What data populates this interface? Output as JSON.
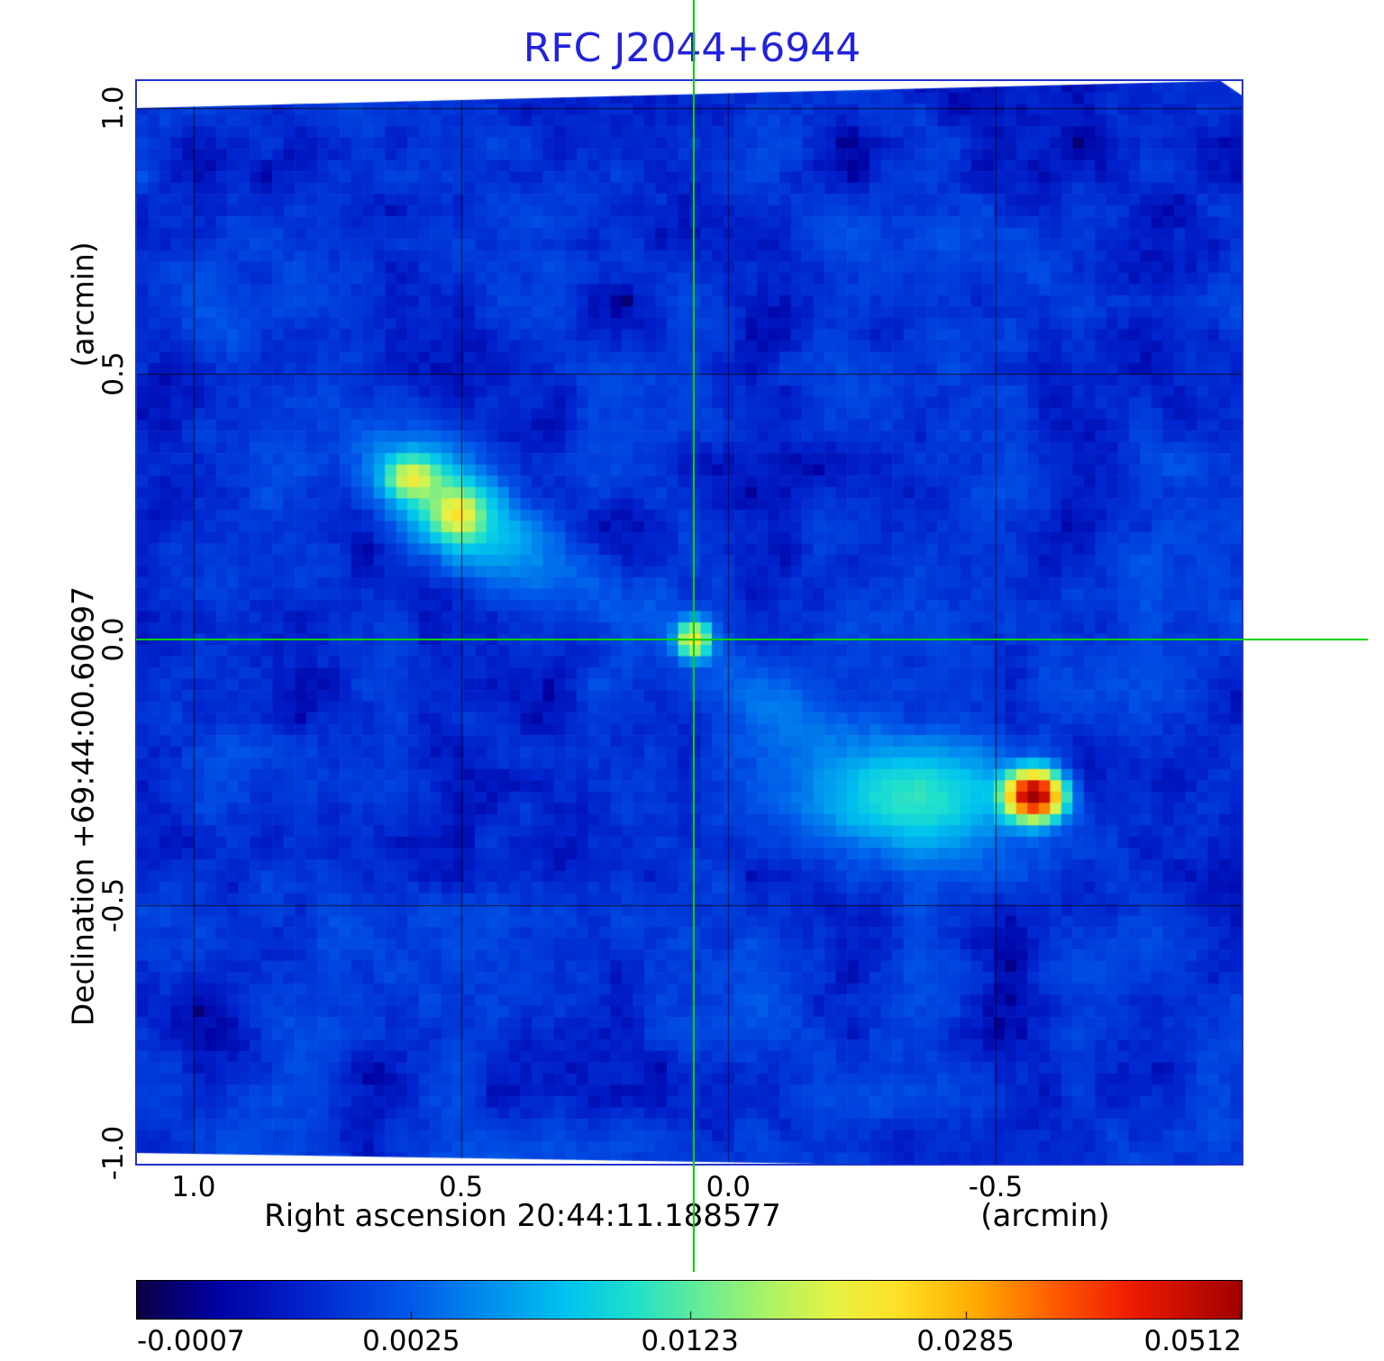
{
  "title": "RFC J2044+6944",
  "axes": {
    "x_label": "Right ascension  20:44:11.188577",
    "x_unit": "(arcmin)",
    "y_label": "Declination  +69:44:00.60697",
    "y_unit": "(arcmin)"
  },
  "colors": {
    "title": "#2222dd",
    "frame": "#2233cc",
    "crosshair": "#00d400",
    "grid": "rgba(0,0,0,0.75)"
  },
  "chart_data": {
    "type": "heatmap",
    "title": "RFC J2044+6944",
    "xlabel": "Right ascension 20:44:11.188577 (arcmin)",
    "ylabel": "Declination +69:44:00.60697 (arcmin)",
    "x_ticks": [
      {
        "label": "1.0",
        "value": 1.0
      },
      {
        "label": "0.5",
        "value": 0.5
      },
      {
        "label": "0.0",
        "value": 0.0
      },
      {
        "label": "-0.5",
        "value": -0.5
      }
    ],
    "y_ticks": [
      {
        "label": "1.0",
        "value": 1.0
      },
      {
        "label": "0.5",
        "value": 0.5
      },
      {
        "label": "0.0",
        "value": 0.0
      },
      {
        "label": "-0.5",
        "value": -0.5
      },
      {
        "label": "-1.0",
        "value": -1.0
      }
    ],
    "x_range_arcmin": [
      1.106,
      -0.96
    ],
    "y_range_arcmin": [
      1.051,
      -0.986
    ],
    "grid_arcmin": {
      "x": [
        1.0,
        0.5,
        0.0,
        -0.5
      ],
      "y": [
        1.0,
        0.5,
        0.0,
        -0.5
      ]
    },
    "intensity_scale": "sqrt",
    "intensity_min": -0.0007,
    "intensity_max": 0.0512,
    "crosshair_arcmin": {
      "x": 0.065,
      "y": 0.0
    },
    "colorbar": {
      "labels": [
        "-0.0007",
        "0.0025",
        "0.0123",
        "0.0285",
        "0.0512"
      ],
      "values": [
        -0.0007,
        0.0025,
        0.0123,
        0.0285,
        0.0512
      ]
    },
    "colormap_stops": [
      [
        0.0,
        "#0b0044"
      ],
      [
        0.07,
        "#0000a0"
      ],
      [
        0.15,
        "#0022cd"
      ],
      [
        0.24,
        "#0055e8"
      ],
      [
        0.32,
        "#0090ee"
      ],
      [
        0.39,
        "#00c4ee"
      ],
      [
        0.45,
        "#20e0cc"
      ],
      [
        0.51,
        "#66ec96"
      ],
      [
        0.57,
        "#aaf266"
      ],
      [
        0.63,
        "#e6f244"
      ],
      [
        0.69,
        "#ffe026"
      ],
      [
        0.76,
        "#ffaa00"
      ],
      [
        0.83,
        "#ff5c00"
      ],
      [
        0.9,
        "#ee1c00"
      ],
      [
        1.0,
        "#a00000"
      ]
    ],
    "sources": [
      {
        "name": "ne-lobe-hotspot-a",
        "x": 0.595,
        "y": 0.305,
        "peak": 0.013,
        "sx": 0.03,
        "sy": 0.024,
        "theta": 0
      },
      {
        "name": "ne-lobe-hotspot-b",
        "x": 0.505,
        "y": 0.235,
        "peak": 0.013,
        "sx": 0.026,
        "sy": 0.028,
        "theta": 0
      },
      {
        "name": "ne-lobe-extended",
        "x": 0.53,
        "y": 0.26,
        "peak": 0.01,
        "sx": 0.105,
        "sy": 0.055,
        "theta": 38
      },
      {
        "name": "core",
        "x": 0.065,
        "y": 0.0,
        "peak": 0.021,
        "sx": 0.02,
        "sy": 0.022,
        "theta": 0
      },
      {
        "name": "sw-hotspot",
        "x": -0.572,
        "y": -0.293,
        "peak": 0.0515,
        "sx": 0.033,
        "sy": 0.028,
        "theta": 0
      },
      {
        "name": "sw-lobe-extended",
        "x": -0.36,
        "y": -0.3,
        "peak": 0.0085,
        "sx": 0.13,
        "sy": 0.068,
        "theta": -4
      },
      {
        "name": "ne-bridge",
        "x": 0.3,
        "y": 0.13,
        "peak": 0.0026,
        "sx": 0.15,
        "sy": 0.05,
        "theta": 31
      },
      {
        "name": "sw-bridge",
        "x": -0.12,
        "y": -0.14,
        "peak": 0.0022,
        "sx": 0.16,
        "sy": 0.05,
        "theta": 25
      }
    ],
    "noise": {
      "mean": 0.0009,
      "octave1": 0.0018,
      "octave2": 0.0012,
      "jitter": 0.0007,
      "seed": 20441188
    },
    "data_boundary": [
      [
        0,
        0.025
      ],
      [
        0.981,
        0
      ],
      [
        1,
        0.013
      ],
      [
        1,
        1
      ],
      [
        0.618,
        1
      ],
      [
        0,
        0.99
      ]
    ]
  }
}
